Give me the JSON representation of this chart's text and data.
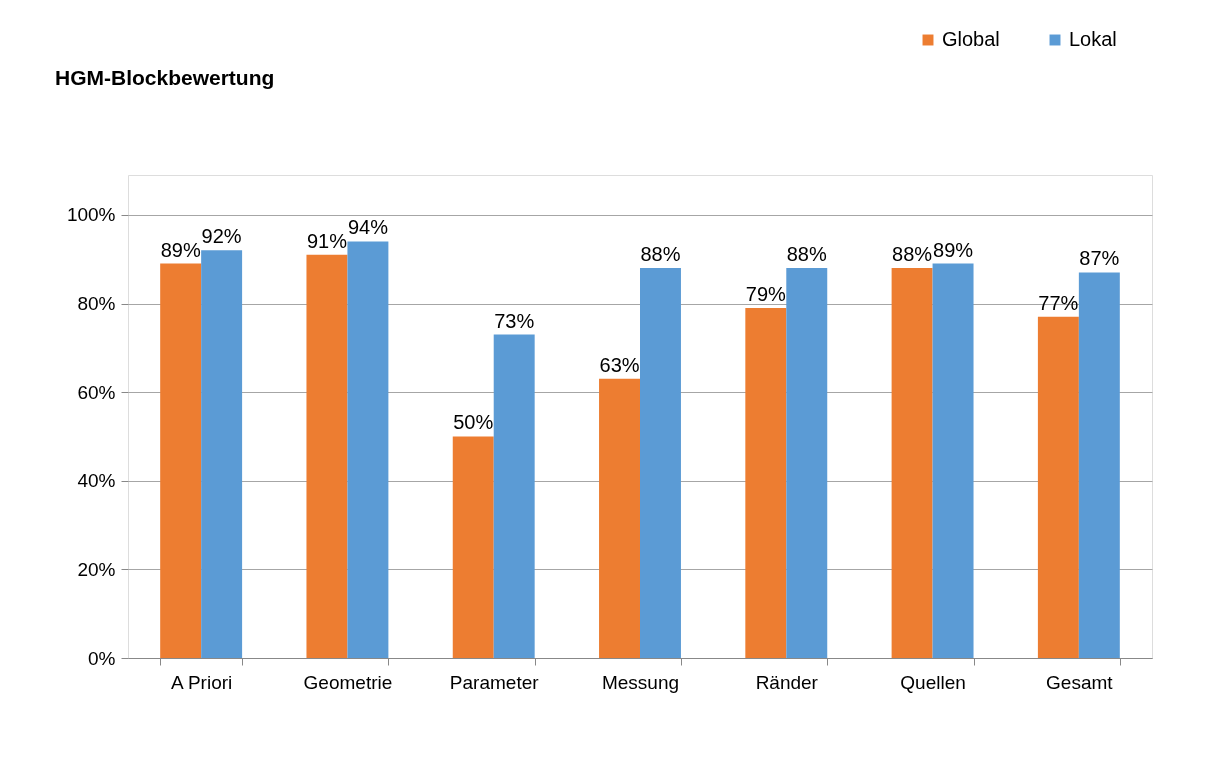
{
  "chart_data": {
    "type": "bar",
    "title": "HGM-Blockbewertung",
    "categories": [
      "A Priori",
      "Geometrie",
      "Parameter",
      "Messung",
      "Ränder",
      "Quellen",
      "Gesamt"
    ],
    "series": [
      {
        "name": "Global",
        "color": "#ed7d31",
        "values": [
          89,
          91,
          50,
          63,
          79,
          88,
          77
        ],
        "value_labels": [
          "89%",
          "91%",
          "50%",
          "63%",
          "79%",
          "88%",
          "77%"
        ]
      },
      {
        "name": "Lokal",
        "color": "#5b9bd5",
        "values": [
          92,
          94,
          73,
          88,
          88,
          89,
          87
        ],
        "value_labels": [
          "92%",
          "94%",
          "73%",
          "88%",
          "88%",
          "89%",
          "87%"
        ]
      }
    ],
    "ylim": [
      0,
      109
    ],
    "yticks": [
      {
        "value": 0,
        "label": "0%"
      },
      {
        "value": 20,
        "label": "20%"
      },
      {
        "value": 40,
        "label": "40%"
      },
      {
        "value": 60,
        "label": "60%"
      },
      {
        "value": 80,
        "label": "80%"
      },
      {
        "value": 100,
        "label": "100%"
      }
    ],
    "grid": "y",
    "legend": "top right"
  }
}
